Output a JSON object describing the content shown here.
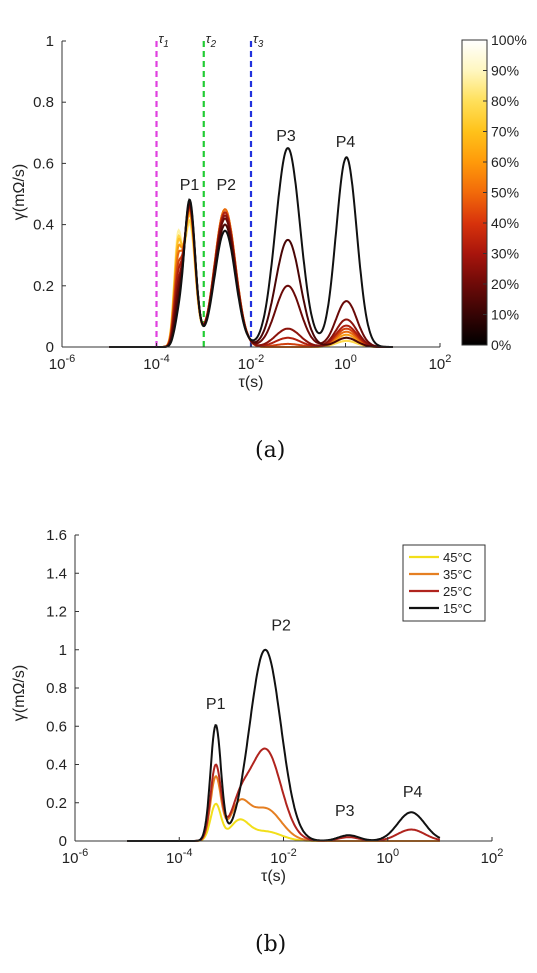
{
  "chart_data": [
    {
      "id": "a",
      "caption": "(a)",
      "type": "line",
      "xscale": "log",
      "xlim_exp": [
        -6,
        2
      ],
      "x_ticks": [
        "10-6",
        "10-4",
        "10-2",
        "100",
        "102"
      ],
      "ylim": [
        0,
        1
      ],
      "y_ticks": [
        "0",
        "0.2",
        "0.4",
        "0.6",
        "0.8",
        "1"
      ],
      "xlabel": "τ(s)",
      "ylabel": "γ(mΩ/s)",
      "vlines": [
        {
          "label": "τ1",
          "x": 0.0001,
          "color": "#e040e0"
        },
        {
          "label": "τ2",
          "x": 0.001,
          "color": "#22cc33"
        },
        {
          "label": "τ3",
          "x": 0.01,
          "color": "#2233dd"
        }
      ],
      "peaks": [
        {
          "label": "P1",
          "x": 0.0005,
          "y": 0.5
        },
        {
          "label": "P2",
          "x": 0.003,
          "y": 0.5
        },
        {
          "label": "P3",
          "x": 0.055,
          "y": 0.66
        },
        {
          "label": "P4",
          "x": 1.0,
          "y": 0.64
        }
      ],
      "colorbar": {
        "ticks": [
          "100%",
          "90%",
          "80%",
          "70%",
          "60%",
          "50%",
          "40%",
          "30%",
          "20%",
          "10%",
          "0%"
        ],
        "colors": [
          "#ffffff",
          "#fff7c0",
          "#ffe05a",
          "#ffc21a",
          "#ff9a0a",
          "#f26a0a",
          "#d8330c",
          "#a8150c",
          "#6e0a08",
          "#360404",
          "#000000"
        ]
      },
      "curve_peaks": [
        "a1",
        "a2",
        "a3",
        "a4"
      ],
      "series": [
        {
          "color": "#fff2a0",
          "a1": 0.4,
          "a2": 0.43,
          "a3": 0.0,
          "a4": 0.02
        },
        {
          "color": "#ffd84a",
          "a1": 0.41,
          "a2": 0.44,
          "a3": 0.0,
          "a4": 0.02
        },
        {
          "color": "#ffbf2a",
          "a1": 0.43,
          "a2": 0.45,
          "a3": 0.0,
          "a4": 0.03
        },
        {
          "color": "#f79a12",
          "a1": 0.44,
          "a2": 0.45,
          "a3": 0.0,
          "a4": 0.04
        },
        {
          "color": "#e86a10",
          "a1": 0.45,
          "a2": 0.45,
          "a3": 0.0,
          "a4": 0.05
        },
        {
          "color": "#d0400e",
          "a1": 0.45,
          "a2": 0.44,
          "a3": 0.01,
          "a4": 0.06
        },
        {
          "color": "#b0200e",
          "a1": 0.46,
          "a2": 0.44,
          "a3": 0.03,
          "a4": 0.07
        },
        {
          "color": "#8c140c",
          "a1": 0.46,
          "a2": 0.43,
          "a3": 0.06,
          "a4": 0.09
        },
        {
          "color": "#6a0a08",
          "a1": 0.47,
          "a2": 0.42,
          "a3": 0.2,
          "a4": 0.15
        },
        {
          "color": "#4a0606",
          "a1": 0.47,
          "a2": 0.4,
          "a3": 0.35,
          "a4": 0.03
        },
        {
          "color": "#111111",
          "a1": 0.48,
          "a2": 0.38,
          "a3": 0.65,
          "a4": 0.62
        }
      ]
    },
    {
      "id": "b",
      "caption": "(b)",
      "type": "line",
      "xscale": "log",
      "xlim_exp": [
        -6,
        2
      ],
      "x_ticks": [
        "10-6",
        "10-4",
        "10-2",
        "100",
        "102"
      ],
      "ylim": [
        0,
        1.6
      ],
      "y_ticks": [
        "0",
        "0.2",
        "0.4",
        "0.6",
        "0.8",
        "1",
        "1.2",
        "1.4",
        "1.6"
      ],
      "xlabel": "τ(s)",
      "ylabel": "γ(mΩ/s)",
      "peaks": [
        {
          "label": "P1",
          "x": 0.0005,
          "y": 0.66
        },
        {
          "label": "P2",
          "x": 0.009,
          "y": 1.07
        },
        {
          "label": "P3",
          "x": 0.15,
          "y": 0.1
        },
        {
          "label": "P4",
          "x": 3.0,
          "y": 0.2
        }
      ],
      "legend_position": "top-right",
      "curve_peaks": [
        "a1",
        "a2",
        "a3",
        "a4",
        "a5"
      ],
      "series": [
        {
          "name": "45°C",
          "color": "#f2df1a",
          "a1": 0.19,
          "a2": 0.1,
          "a3": 0.05,
          "a4": 0.0,
          "a5": 0.0
        },
        {
          "name": "35°C",
          "color": "#e57f22",
          "a1": 0.33,
          "a2": 0.17,
          "a3": 0.17,
          "a4": 0.0,
          "a5": 0.0
        },
        {
          "name": "25°C",
          "color": "#b0241e",
          "a1": 0.39,
          "a2": 0.15,
          "a3": 0.48,
          "a4": 0.02,
          "a5": 0.06
        },
        {
          "name": "15°C",
          "color": "#111111",
          "a1": 0.6,
          "a2": 0.0,
          "a3": 1.0,
          "a4": 0.03,
          "a5": 0.15
        }
      ]
    }
  ]
}
